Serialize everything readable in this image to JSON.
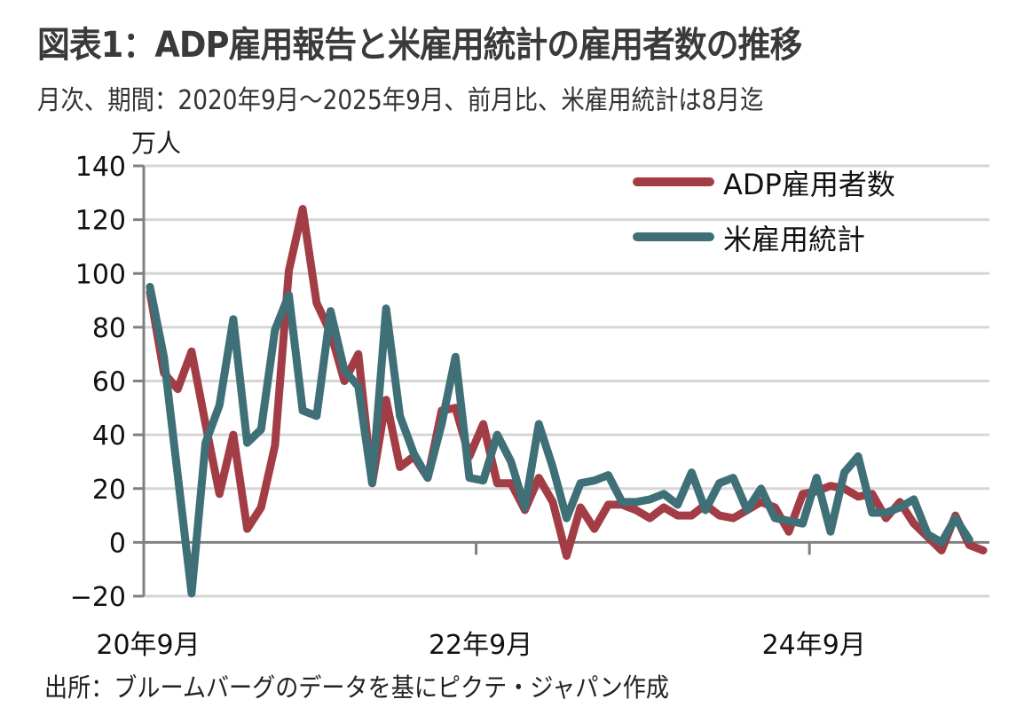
{
  "title": "図表1：ADP雇用報告と米雇用統計の雇用者数の推移",
  "subtitle": "月次、期間：2020年9月～2025年9月、前月比、米雇用統計は8月迄",
  "unit_label": "万人",
  "source": "出所：ブルームバーグのデータを基にピクテ・ジャパン作成",
  "chart_data": {
    "type": "line",
    "title": "図表1：ADP雇用報告と米雇用統計の雇用者数の推移",
    "xlabel": "",
    "ylabel": "万人",
    "ylim": [
      -20,
      140
    ],
    "yticks": [
      -20,
      0,
      20,
      40,
      60,
      80,
      100,
      120,
      140
    ],
    "ytick_labels": [
      "−20",
      "0",
      "20",
      "40",
      "60",
      "80",
      "100",
      "120",
      "140"
    ],
    "x_start": "2020-09",
    "x_tick_labels": [
      {
        "label": "20年9月",
        "month_index": 0
      },
      {
        "label": "22年9月",
        "month_index": 24
      },
      {
        "label": "24年9月",
        "month_index": 48
      }
    ],
    "grid": true,
    "legend_position": "top-right",
    "series": [
      {
        "name": "ADP雇用者数",
        "color": "#a33d45",
        "values": [
          93,
          63,
          57,
          71,
          44,
          18,
          40,
          5,
          13,
          36,
          101,
          124,
          89,
          78,
          60,
          70,
          22,
          53,
          28,
          32,
          24,
          49,
          50,
          32,
          44,
          22,
          22,
          12,
          24,
          15,
          -5,
          13,
          5,
          14,
          14,
          12,
          9,
          13,
          10,
          10,
          14,
          10,
          9,
          12,
          15,
          13,
          4,
          18,
          19,
          21,
          20,
          17,
          18,
          9,
          15,
          7,
          2,
          -3,
          10,
          -1,
          -3
        ]
      },
      {
        "name": "米雇用統計",
        "color": "#3f6f77",
        "values": [
          95,
          69,
          25,
          -19,
          37,
          51,
          83,
          37,
          42,
          79,
          92,
          49,
          47,
          86,
          64,
          58,
          22,
          87,
          47,
          33,
          24,
          44,
          69,
          24,
          23,
          40,
          30,
          13,
          44,
          28,
          9,
          22,
          23,
          25,
          15,
          15,
          16,
          18,
          14,
          26,
          12,
          22,
          24,
          12,
          20,
          9,
          8,
          7,
          24,
          4,
          26,
          32,
          11,
          11,
          13,
          16,
          3,
          0,
          9,
          1
        ]
      }
    ]
  }
}
